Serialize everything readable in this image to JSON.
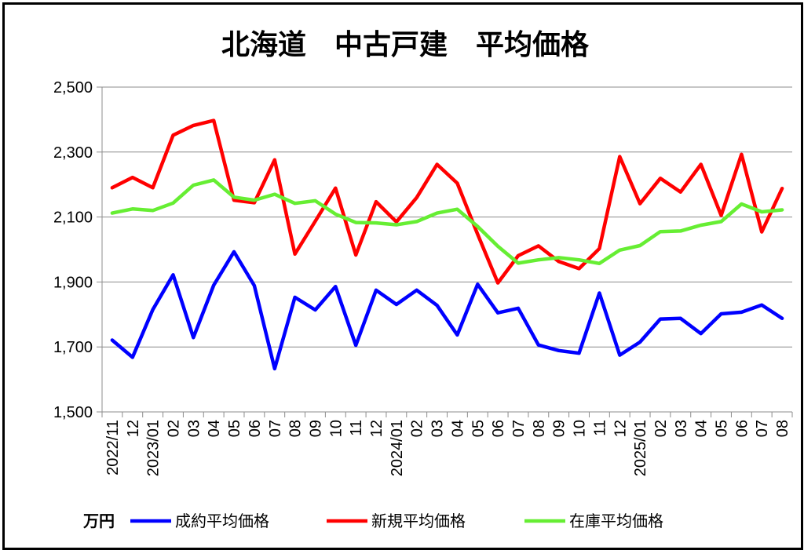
{
  "chart_data": {
    "type": "line",
    "title": "北海道　中古戸建　平均価格",
    "unit_label": "万円",
    "ylim": [
      1500,
      2500
    ],
    "y_ticks": [
      "1,500",
      "1,700",
      "1,900",
      "2,100",
      "2,300",
      "2,500"
    ],
    "grid": true,
    "legend_position": "bottom",
    "x": [
      "2022/11",
      "12",
      "2023/01",
      "02",
      "03",
      "04",
      "05",
      "06",
      "07",
      "08",
      "09",
      "10",
      "11",
      "12",
      "2024/01",
      "02",
      "03",
      "04",
      "05",
      "06",
      "07",
      "08",
      "09",
      "10",
      "11",
      "12",
      "2025/01",
      "02",
      "03",
      "04",
      "05",
      "06",
      "07",
      "08"
    ],
    "series": [
      {
        "name": "成約平均価格",
        "color": "#0000ff",
        "values": [
          1721,
          1668,
          1815,
          1922,
          1729,
          1890,
          1993,
          1889,
          1633,
          1853,
          1814,
          1886,
          1705,
          1875,
          1831,
          1875,
          1828,
          1737,
          1893,
          1805,
          1819,
          1706,
          1689,
          1681,
          1866,
          1675,
          1715,
          1786,
          1788,
          1741,
          1802,
          1807,
          1829,
          1788
        ]
      },
      {
        "name": "新規平均価格",
        "color": "#ff0000",
        "values": [
          2190,
          2222,
          2190,
          2352,
          2382,
          2397,
          2152,
          2144,
          2276,
          1986,
          2087,
          2189,
          1983,
          2147,
          2085,
          2160,
          2262,
          2204,
          2047,
          1897,
          1981,
          2011,
          1963,
          1941,
          2003,
          2286,
          2141,
          2219,
          2177,
          2262,
          2105,
          2293,
          2054,
          2188
        ]
      },
      {
        "name": "在庫平均価格",
        "color": "#66ee33",
        "values": [
          2112,
          2125,
          2120,
          2143,
          2198,
          2214,
          2161,
          2152,
          2170,
          2142,
          2150,
          2109,
          2083,
          2082,
          2076,
          2086,
          2112,
          2124,
          2071,
          2010,
          1958,
          1968,
          1975,
          1968,
          1957,
          1998,
          2012,
          2055,
          2057,
          2075,
          2086,
          2140,
          2116,
          2122
        ]
      }
    ]
  }
}
